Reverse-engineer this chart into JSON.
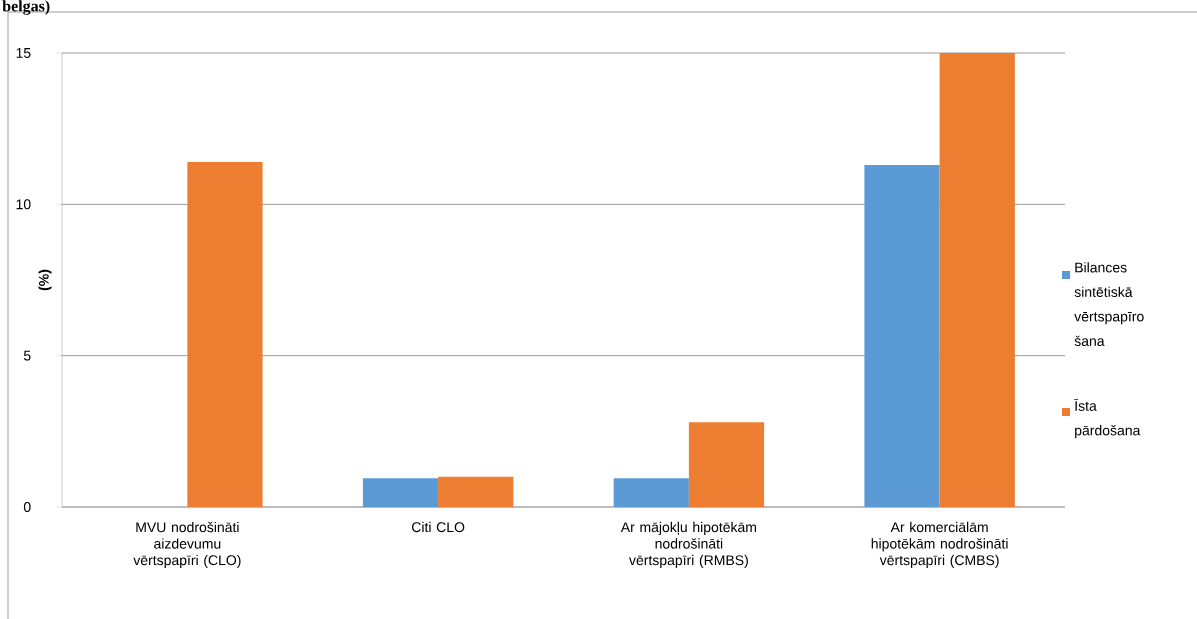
{
  "chart_data": {
    "type": "bar",
    "title": "belgas)",
    "ylabel": "(%)",
    "categories": [
      "MVU nodrošināti aizdevumu vērtspapīri (CLO)",
      "Citi CLO",
      "Ar mājokļu hipotēkām nodrošināti vērtspapīri (RMBS)",
      "Ar komerciālām hipotēkām nodrošināti vērtspapīri (CMBS)"
    ],
    "series": [
      {
        "name": "Bilances sintētiskā vērtspapīro šana",
        "color": "#5b9bd5",
        "values": [
          null,
          0.95,
          0.95,
          11.3
        ]
      },
      {
        "name": "Īsta pārdošana",
        "color": "#ed7d31",
        "values": [
          11.4,
          1.0,
          2.8,
          15.0
        ]
      }
    ],
    "ylim": [
      0,
      15
    ],
    "yticks": [
      0,
      5,
      10,
      15
    ],
    "grid": "y",
    "legend": "right"
  }
}
